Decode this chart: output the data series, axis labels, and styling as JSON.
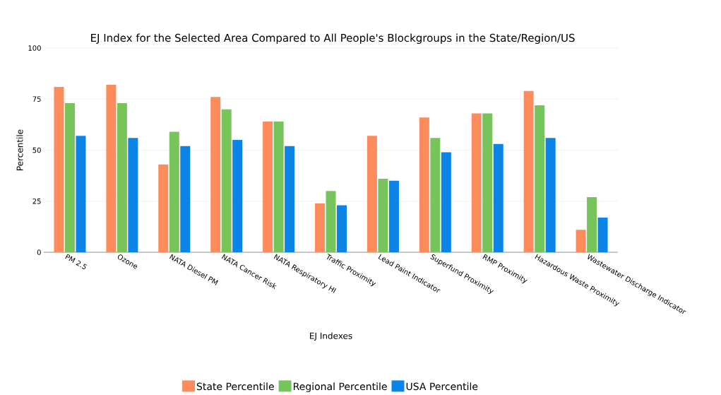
{
  "chart_data": {
    "type": "bar",
    "title": "EJ Index for the Selected Area Compared to All People's Blockgroups in the State/Region/US",
    "xlabel": "EJ Indexes",
    "ylabel": "Percentile",
    "categories": [
      "PM 2.5",
      "Ozone",
      "NATA Diesel PM",
      "NATA Cancer Risk",
      "NATA Respiratory HI",
      "Traffic Proximity",
      "Lead Paint Indicator",
      "Superfund Proximity",
      "RMP Proximity",
      "Hazardous Waste Proximity",
      "Wastewater Discharge Indicator"
    ],
    "series": [
      {
        "name": "State Percentile",
        "color": "#fd8c5c",
        "values": [
          81,
          82,
          43,
          76,
          64,
          24,
          57,
          66,
          68,
          79,
          11
        ]
      },
      {
        "name": "Regional Percentile",
        "color": "#77c45a",
        "values": [
          73,
          73,
          59,
          70,
          64,
          30,
          36,
          56,
          68,
          72,
          27
        ]
      },
      {
        "name": "USA Percentile",
        "color": "#0a84e6",
        "values": [
          57,
          56,
          52,
          55,
          52,
          23,
          35,
          49,
          53,
          56,
          17
        ]
      }
    ],
    "ylim": [
      0,
      100
    ],
    "yticks": [
      0,
      25,
      50,
      75,
      100
    ],
    "grid": "y",
    "legend": "bottom"
  }
}
